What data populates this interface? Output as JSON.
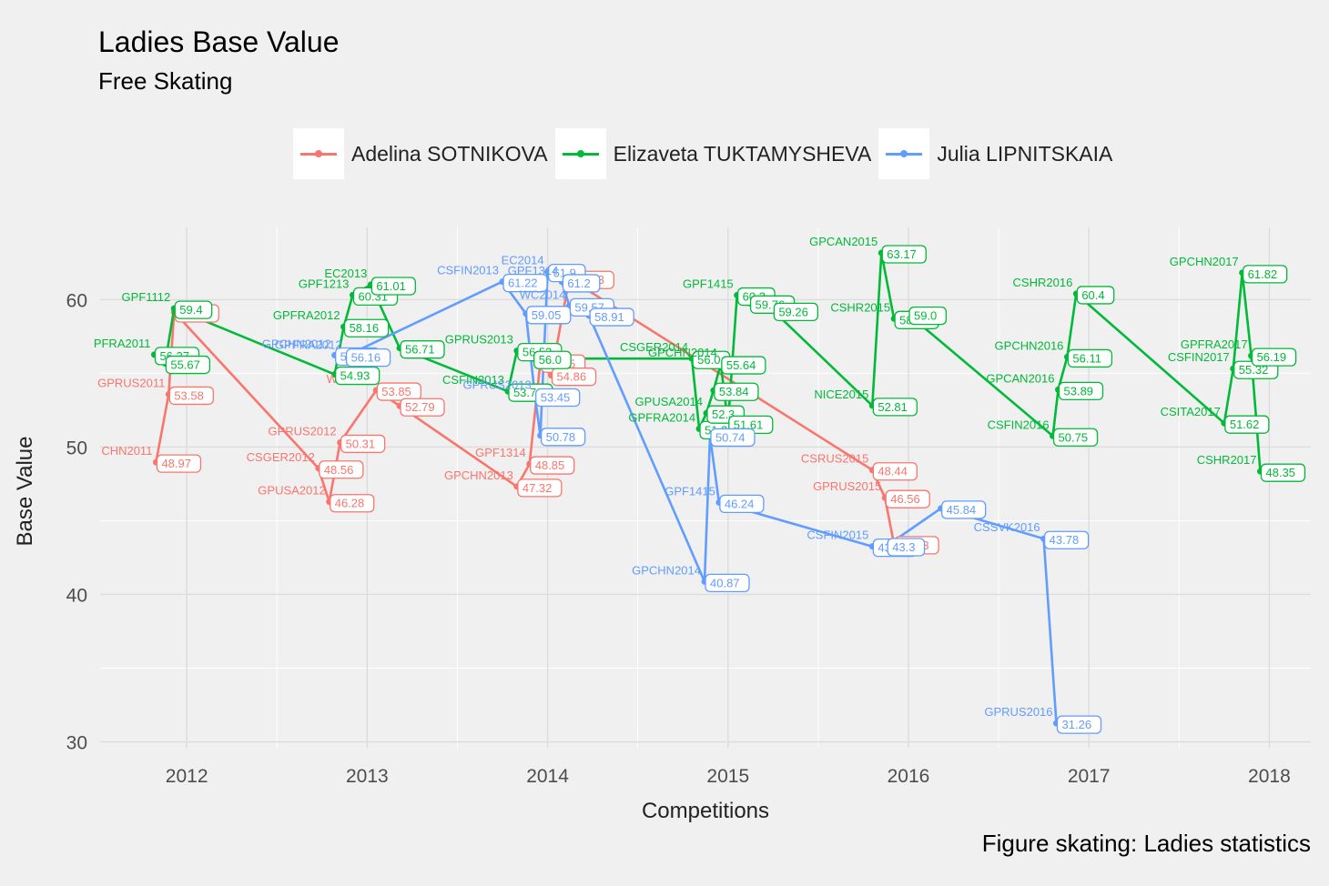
{
  "chart_data": {
    "type": "line",
    "title": "Ladies Base Value",
    "subtitle": "Free Skating",
    "caption": "Figure skating: Ladies statistics",
    "xlabel": "Competitions",
    "ylabel": "Base Value",
    "xlim": [
      2011.52,
      2018.23
    ],
    "ylim": [
      29.6,
      64.9
    ],
    "xticks": [
      2012,
      2013,
      2014,
      2015,
      2016,
      2017,
      2018
    ],
    "yticks": [
      30,
      40,
      50,
      60
    ],
    "grid": true,
    "legend_position": "top",
    "series": [
      {
        "name": "Adelina SOTNIKOVA",
        "color": "#F8766D",
        "points": [
          {
            "x": 2011.83,
            "y": 48.97,
            "label": "CHN2011",
            "value": "48.97"
          },
          {
            "x": 2011.9,
            "y": 53.58,
            "label": "GPRUS2011",
            "value": "53.58"
          },
          {
            "x": 2011.93,
            "y": 59.16,
            "label": "",
            "value": "59.16"
          },
          {
            "x": 2012.73,
            "y": 48.56,
            "label": "CSGER2012",
            "value": "48.56"
          },
          {
            "x": 2012.79,
            "y": 46.28,
            "label": "GPUSA2012",
            "value": "46.28"
          },
          {
            "x": 2012.85,
            "y": 50.31,
            "label": "GPRUS2012",
            "value": "50.31"
          },
          {
            "x": 2013.05,
            "y": 53.85,
            "label": "WC2013",
            "value": "53.85"
          },
          {
            "x": 2013.18,
            "y": 52.79,
            "label": "",
            "value": "52.79"
          },
          {
            "x": 2013.83,
            "y": 47.32,
            "label": "GPCHN2013",
            "value": "47.32"
          },
          {
            "x": 2013.9,
            "y": 48.85,
            "label": "GPF1314",
            "value": "48.85"
          },
          {
            "x": 2013.96,
            "y": 55.75,
            "label": "",
            "value": "55.75"
          },
          {
            "x": 2014.02,
            "y": 54.86,
            "label": "",
            "value": "54.86"
          },
          {
            "x": 2014.12,
            "y": 61.43,
            "label": "",
            "value": "61.43"
          },
          {
            "x": 2015.8,
            "y": 48.44,
            "label": "CSRUS2015",
            "value": "48.44"
          },
          {
            "x": 2015.87,
            "y": 46.56,
            "label": "GPRUS2015",
            "value": "46.56"
          },
          {
            "x": 2015.92,
            "y": 43.43,
            "label": "",
            "value": "43.43"
          }
        ]
      },
      {
        "name": "Elizaveta TUKTAMYSHEVA",
        "color": "#00BA38",
        "points": [
          {
            "x": 2011.82,
            "y": 56.27,
            "label": "PFRA2011",
            "value": "56.27"
          },
          {
            "x": 2011.88,
            "y": 55.67,
            "label": "",
            "value": "55.67"
          },
          {
            "x": 2011.93,
            "y": 59.4,
            "label": "GPF1112",
            "value": "59.4"
          },
          {
            "x": 2012.82,
            "y": 54.93,
            "label": "",
            "value": "54.93"
          },
          {
            "x": 2012.87,
            "y": 58.16,
            "label": "GPFRA2012",
            "value": "58.16"
          },
          {
            "x": 2012.92,
            "y": 60.31,
            "label": "GPF1213",
            "value": "60.31"
          },
          {
            "x": 2013.02,
            "y": 61.01,
            "label": "EC2013",
            "value": "61.01"
          },
          {
            "x": 2013.18,
            "y": 56.71,
            "label": "",
            "value": "56.71"
          },
          {
            "x": 2013.78,
            "y": 53.78,
            "label": "CSFIN2013",
            "value": "53.78"
          },
          {
            "x": 2013.83,
            "y": 56.53,
            "label": "GPRUS2013",
            "value": "56.53"
          },
          {
            "x": 2013.92,
            "y": 56.0,
            "label": "",
            "value": "56.0"
          },
          {
            "x": 2014.8,
            "y": 56.0,
            "label": "CSGER2014",
            "value": "56.0"
          },
          {
            "x": 2014.84,
            "y": 51.24,
            "label": "GPFRA2014",
            "value": "51.24"
          },
          {
            "x": 2014.88,
            "y": 52.3,
            "label": "GPUSA2014",
            "value": "52.3"
          },
          {
            "x": 2014.92,
            "y": 53.84,
            "label": "",
            "value": "53.84"
          },
          {
            "x": 2014.96,
            "y": 55.64,
            "label": "GPCHN2014",
            "value": "55.64"
          },
          {
            "x": 2015.0,
            "y": 51.61,
            "label": "",
            "value": "51.61"
          },
          {
            "x": 2015.05,
            "y": 60.3,
            "label": "GPF1415",
            "value": "60.3"
          },
          {
            "x": 2015.12,
            "y": 59.76,
            "label": "",
            "value": "59.76"
          },
          {
            "x": 2015.25,
            "y": 59.26,
            "label": "",
            "value": "59.26"
          },
          {
            "x": 2015.8,
            "y": 52.81,
            "label": "NICE2015",
            "value": "52.81"
          },
          {
            "x": 2015.85,
            "y": 63.17,
            "label": "GPCAN2015",
            "value": "63.17"
          },
          {
            "x": 2015.92,
            "y": 58.71,
            "label": "CSHR2015",
            "value": "58.71"
          },
          {
            "x": 2016.0,
            "y": 59.0,
            "label": "",
            "value": "59.0"
          },
          {
            "x": 2016.8,
            "y": 50.75,
            "label": "CSFIN2016",
            "value": "50.75"
          },
          {
            "x": 2016.83,
            "y": 53.89,
            "label": "GPCAN2016",
            "value": "53.89"
          },
          {
            "x": 2016.88,
            "y": 56.11,
            "label": "GPCHN2016",
            "value": "56.11"
          },
          {
            "x": 2016.93,
            "y": 60.4,
            "label": "CSHR2016",
            "value": "60.4"
          },
          {
            "x": 2017.75,
            "y": 51.62,
            "label": "CSITA2017",
            "value": "51.62"
          },
          {
            "x": 2017.8,
            "y": 55.32,
            "label": "CSFIN2017",
            "value": "55.32"
          },
          {
            "x": 2017.85,
            "y": 61.82,
            "label": "GPCHN2017",
            "value": "61.82"
          },
          {
            "x": 2017.9,
            "y": 56.19,
            "label": "GPFRA2017",
            "value": "56.19"
          },
          {
            "x": 2017.95,
            "y": 48.35,
            "label": "CSHR2017",
            "value": "48.35"
          }
        ]
      },
      {
        "name": "Julia LIPNITSKAIA",
        "color": "#619CFF",
        "points": [
          {
            "x": 2012.82,
            "y": 56.23,
            "label": "GPCHN2012",
            "value": "56.23"
          },
          {
            "x": 2012.88,
            "y": 56.16,
            "label": "GPFRA2012",
            "value": "56.16"
          },
          {
            "x": 2013.75,
            "y": 61.22,
            "label": "CSFIN2013",
            "value": "61.22"
          },
          {
            "x": 2013.88,
            "y": 59.05,
            "label": "",
            "value": "59.05"
          },
          {
            "x": 2013.93,
            "y": 53.45,
            "label": "GPRUS2013",
            "value": "53.45"
          },
          {
            "x": 2013.96,
            "y": 50.78,
            "label": "",
            "value": "50.78"
          },
          {
            "x": 2014.0,
            "y": 61.9,
            "label": "EC2014",
            "value": "61.9"
          },
          {
            "x": 2014.08,
            "y": 61.2,
            "label": "GPF1314",
            "value": "61.2"
          },
          {
            "x": 2014.12,
            "y": 59.57,
            "label": "WC2014",
            "value": "59.57"
          },
          {
            "x": 2014.23,
            "y": 58.91,
            "label": "",
            "value": "58.91"
          },
          {
            "x": 2014.87,
            "y": 40.87,
            "label": "GPCHN2014",
            "value": "40.87"
          },
          {
            "x": 2014.9,
            "y": 50.74,
            "label": "",
            "value": "50.74"
          },
          {
            "x": 2014.95,
            "y": 46.24,
            "label": "GPF1415",
            "value": "46.24"
          },
          {
            "x": 2015.8,
            "y": 43.26,
            "label": "CSFIN2015",
            "value": "43.26"
          },
          {
            "x": 2015.88,
            "y": 43.3,
            "label": "",
            "value": "43.3"
          },
          {
            "x": 2016.18,
            "y": 45.84,
            "label": "",
            "value": "45.84"
          },
          {
            "x": 2016.75,
            "y": 43.78,
            "label": "CSSVK2016",
            "value": "43.78"
          },
          {
            "x": 2016.82,
            "y": 31.26,
            "label": "GPRUS2016",
            "value": "31.26"
          }
        ]
      }
    ]
  }
}
